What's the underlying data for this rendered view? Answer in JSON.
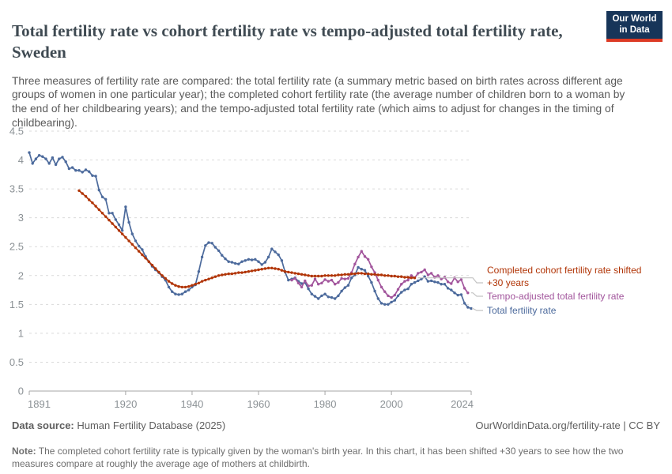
{
  "header": {
    "title": "Total fertility rate vs cohort fertility rate vs tempo-adjusted total fertility rate, Sweden",
    "subtitle": "Three measures of fertility rate are compared: the total fertility rate (a summary metric based on birth rates across different age groups of women in one particular year); the completed cohort fertility rate (the average number of children born to a woman by the end of her childbearing years); and the tempo-adjusted total fertility rate (which aims to adjust for changes in the timing of childbearing).",
    "logo": {
      "line1": "Our World",
      "line2": "in Data",
      "bg": "#173559",
      "accent": "#dc3a24"
    }
  },
  "footer": {
    "data_source_label": "Data source:",
    "data_source": " Human Fertility Database (2025)",
    "attribution": "OurWorldinData.org/fertility-rate | CC BY",
    "note_label": "Note:",
    "note": " The completed cohort fertility rate is typically given by the woman's birth year. In this chart, it has been shifted +30 years to see how the two measures compare at roughly the average age of mothers at childbirth."
  },
  "chart_data": {
    "type": "line",
    "title": "Total fertility rate vs cohort fertility rate vs tempo-adjusted total fertility rate, Sweden",
    "xlim": [
      1891,
      2024
    ],
    "ylim": [
      0,
      4.5
    ],
    "x_ticks": [
      1891,
      1920,
      1940,
      1960,
      1980,
      2000,
      2024
    ],
    "y_ticks": [
      0,
      0.5,
      1,
      1.5,
      2,
      2.5,
      3,
      3.5,
      4,
      4.5
    ],
    "grid": "horizontal dashed",
    "legend_position": "right of plot, colored text labels with gray connectors",
    "series": [
      {
        "name": "Completed cohort fertility rate shifted +30 years",
        "label_lines": [
          "Completed cohort fertility rate shifted",
          "+30 years"
        ],
        "color": "#b13507",
        "start": 1906,
        "values": [
          3.47,
          3.42,
          3.37,
          3.31,
          3.26,
          3.2,
          3.14,
          3.08,
          3.02,
          2.96,
          2.9,
          2.84,
          2.78,
          2.72,
          2.66,
          2.6,
          2.54,
          2.48,
          2.42,
          2.36,
          2.3,
          2.24,
          2.18,
          2.12,
          2.06,
          2.0,
          1.95,
          1.9,
          1.86,
          1.83,
          1.81,
          1.8,
          1.8,
          1.81,
          1.83,
          1.85,
          1.87,
          1.9,
          1.92,
          1.94,
          1.96,
          1.98,
          2.0,
          2.01,
          2.02,
          2.03,
          2.03,
          2.04,
          2.05,
          2.05,
          2.06,
          2.07,
          2.08,
          2.09,
          2.1,
          2.11,
          2.12,
          2.13,
          2.13,
          2.12,
          2.11,
          2.09,
          2.07,
          2.06,
          2.05,
          2.04,
          2.03,
          2.02,
          2.01,
          2.0,
          1.99,
          1.99,
          1.99,
          1.99,
          2.0,
          2.0,
          2.0,
          2.0,
          2.01,
          2.01,
          2.02,
          2.02,
          2.03,
          2.03,
          2.04,
          2.04,
          2.03,
          2.03,
          2.02,
          2.02,
          2.01,
          2.01,
          2.0,
          2.0,
          1.99,
          1.99,
          1.98,
          1.98,
          1.97,
          1.97,
          1.96,
          1.96
        ]
      },
      {
        "name": "Tempo-adjusted total fertility rate",
        "label_lines": [
          "Tempo-adjusted total fertility rate"
        ],
        "color": "#a2559c",
        "start": 1970,
        "values": [
          1.92,
          1.95,
          1.87,
          1.8,
          1.91,
          1.82,
          1.83,
          1.94,
          1.85,
          1.87,
          1.93,
          1.9,
          1.92,
          1.85,
          1.88,
          1.95,
          1.94,
          1.95,
          2.05,
          2.2,
          2.32,
          2.42,
          2.33,
          2.28,
          2.15,
          2.05,
          1.92,
          1.8,
          1.72,
          1.65,
          1.62,
          1.66,
          1.76,
          1.85,
          1.9,
          1.92,
          2.0,
          1.96,
          2.04,
          2.06,
          2.1,
          2.01,
          2.04,
          1.97,
          2.0,
          1.94,
          1.97,
          1.89,
          1.86,
          1.96,
          1.89,
          1.93,
          1.78,
          1.7
        ]
      },
      {
        "name": "Total fertility rate",
        "label_lines": [
          "Total fertility rate"
        ],
        "color": "#4c6a9c",
        "start": 1891,
        "values": [
          4.13,
          3.94,
          4.02,
          4.08,
          4.06,
          4.02,
          3.94,
          4.04,
          3.92,
          4.02,
          4.05,
          3.97,
          3.85,
          3.87,
          3.82,
          3.82,
          3.79,
          3.83,
          3.8,
          3.73,
          3.72,
          3.48,
          3.36,
          3.32,
          3.08,
          3.08,
          2.97,
          2.88,
          2.78,
          3.19,
          2.92,
          2.72,
          2.6,
          2.51,
          2.45,
          2.33,
          2.24,
          2.16,
          2.1,
          2.05,
          1.98,
          1.92,
          1.8,
          1.72,
          1.68,
          1.67,
          1.68,
          1.72,
          1.75,
          1.8,
          1.84,
          2.07,
          2.32,
          2.52,
          2.57,
          2.56,
          2.49,
          2.43,
          2.35,
          2.29,
          2.24,
          2.23,
          2.21,
          2.2,
          2.24,
          2.26,
          2.28,
          2.27,
          2.28,
          2.24,
          2.19,
          2.23,
          2.32,
          2.46,
          2.41,
          2.36,
          2.26,
          2.06,
          1.92,
          1.94,
          1.96,
          1.9,
          1.86,
          1.88,
          1.77,
          1.68,
          1.64,
          1.6,
          1.65,
          1.68,
          1.63,
          1.62,
          1.6,
          1.65,
          1.73,
          1.79,
          1.83,
          1.96,
          2.01,
          2.14,
          2.11,
          2.09,
          1.99,
          1.88,
          1.73,
          1.6,
          1.52,
          1.5,
          1.5,
          1.54,
          1.57,
          1.65,
          1.71,
          1.75,
          1.77,
          1.85,
          1.88,
          1.91,
          1.94,
          1.98,
          1.9,
          1.91,
          1.89,
          1.88,
          1.85,
          1.85,
          1.78,
          1.75,
          1.7,
          1.66,
          1.67,
          1.52,
          1.45,
          1.43
        ]
      }
    ]
  }
}
